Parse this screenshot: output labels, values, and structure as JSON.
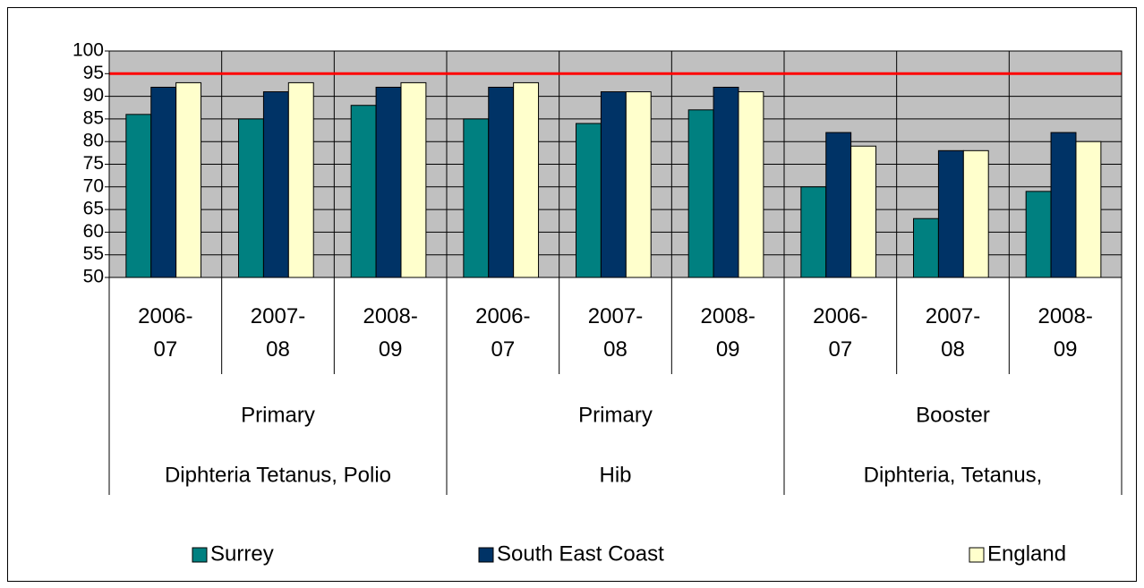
{
  "chart_data": {
    "type": "bar",
    "categories": [
      "2006-07",
      "2007-08",
      "2008-09",
      "2006-07",
      "2007-08",
      "2008-09",
      "2006-07",
      "2007-08",
      "2008-09"
    ],
    "groups": [
      {
        "label": "Primary",
        "sublabel": "Diphteria Tetanus, Polio"
      },
      {
        "label": "Primary",
        "sublabel": "Hib"
      },
      {
        "label": "Booster",
        "sublabel": "Diphteria, Tetanus,"
      }
    ],
    "series": [
      {
        "name": "Surrey",
        "color": "#008080",
        "values": [
          86,
          85,
          88,
          85,
          84,
          87,
          70,
          63,
          69
        ]
      },
      {
        "name": "South East Coast",
        "color": "#003366",
        "values": [
          92,
          91,
          92,
          92,
          91,
          92,
          82,
          78,
          82
        ]
      },
      {
        "name": "England",
        "color": "#ffffcc",
        "values": [
          93,
          93,
          93,
          93,
          91,
          91,
          79,
          78,
          80
        ]
      }
    ],
    "reference_line": {
      "value": 95,
      "color": "#ff0000"
    },
    "ylim": [
      50,
      100
    ],
    "yticks": [
      50,
      55,
      60,
      65,
      70,
      75,
      80,
      85,
      90,
      95,
      100
    ],
    "grid": true,
    "plot_background": "#c0c0c0",
    "legend": "bottom"
  }
}
